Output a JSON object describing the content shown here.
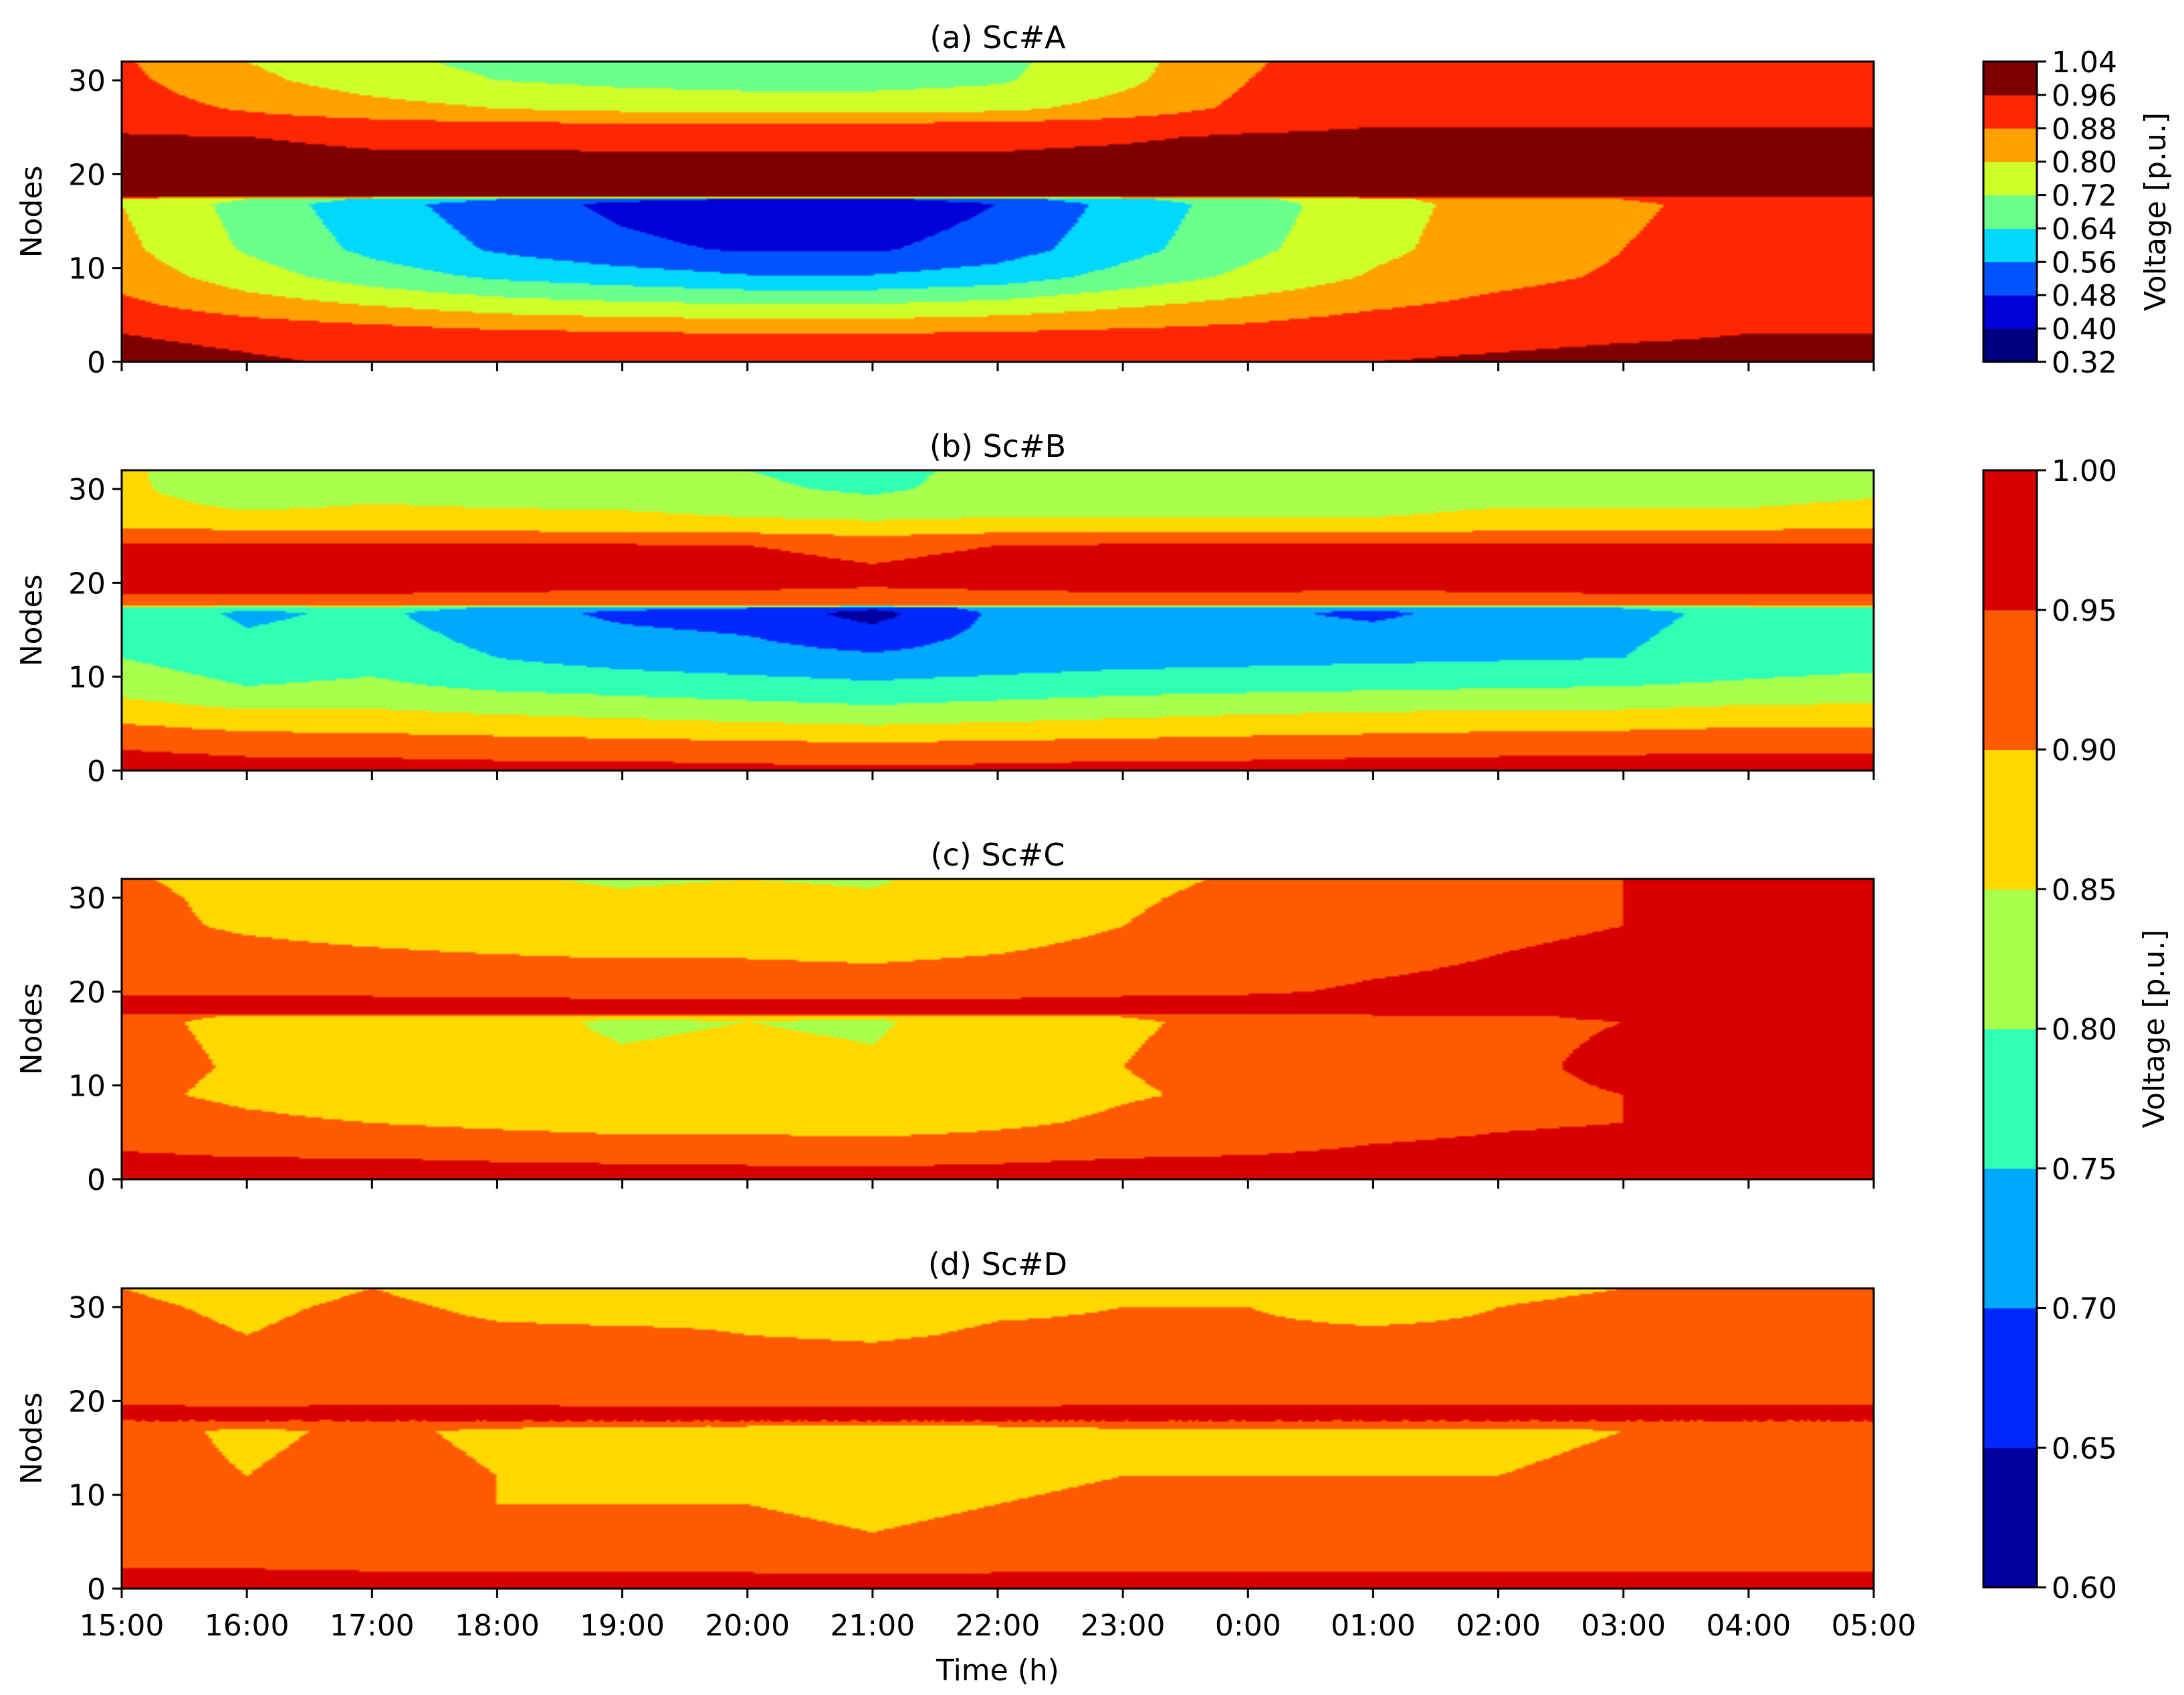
{
  "chart_data": {
    "type": "heatmap",
    "xlabel": "Time (h)",
    "ylabel": "Nodes",
    "x_tick_labels": [
      "15:00",
      "16:00",
      "17:00",
      "18:00",
      "19:00",
      "20:00",
      "21:00",
      "22:00",
      "23:00",
      "0:00",
      "01:00",
      "02:00",
      "03:00",
      "04:00",
      "05:00"
    ],
    "y_ticks": [
      0,
      10,
      20,
      30
    ],
    "ylim": [
      0,
      32
    ],
    "panels": [
      {
        "title": "(a) Sc#A",
        "colorbar": {
          "label": "Voltage [p.u.]",
          "levels": [
            "0.32",
            "0.40",
            "0.48",
            "0.56",
            "0.64",
            "0.72",
            "0.80",
            "0.88",
            "0.96",
            "1.04"
          ],
          "colors": [
            "#00007f",
            "#0000d8",
            "#0053ff",
            "#00d8ff",
            "#6bff8b",
            "#cfff29",
            "#ffa100",
            "#ff2600",
            "#7f0000"
          ]
        },
        "profiles": {
          "0": [
            0.99,
            0.97,
            0.95,
            0.93,
            0.925,
            0.92,
            0.92,
            0.93,
            0.94,
            0.95,
            0.96,
            0.97,
            0.98,
            0.98,
            0.98
          ],
          "3": [
            0.96,
            0.94,
            0.92,
            0.9,
            0.89,
            0.88,
            0.88,
            0.89,
            0.9,
            0.91,
            0.93,
            0.94,
            0.95,
            0.96,
            0.96
          ],
          "6": [
            0.9,
            0.84,
            0.8,
            0.76,
            0.74,
            0.73,
            0.73,
            0.75,
            0.79,
            0.83,
            0.87,
            0.9,
            0.92,
            0.93,
            0.93
          ],
          "9": [
            0.85,
            0.76,
            0.68,
            0.63,
            0.6,
            0.57,
            0.57,
            0.6,
            0.67,
            0.74,
            0.81,
            0.86,
            0.89,
            0.92,
            0.93
          ],
          "12": [
            0.82,
            0.71,
            0.62,
            0.55,
            0.5,
            0.47,
            0.47,
            0.52,
            0.61,
            0.7,
            0.78,
            0.84,
            0.88,
            0.91,
            0.92
          ],
          "16.8": [
            0.8,
            0.69,
            0.59,
            0.52,
            0.46,
            0.43,
            0.42,
            0.48,
            0.59,
            0.68,
            0.77,
            0.83,
            0.87,
            0.9,
            0.92
          ],
          "17.3": [
            0.8,
            0.72,
            0.62,
            0.56,
            0.5,
            0.47,
            0.46,
            0.52,
            0.62,
            0.7,
            0.78,
            0.84,
            0.88,
            0.91,
            0.92
          ],
          "17.7": [
            0.985,
            0.98,
            0.98,
            0.98,
            0.98,
            0.98,
            0.98,
            0.98,
            0.98,
            0.985,
            0.99,
            0.99,
            0.99,
            0.99,
            0.99
          ],
          "20": [
            0.99,
            0.985,
            0.98,
            0.98,
            0.975,
            0.975,
            0.975,
            0.975,
            0.98,
            0.985,
            0.99,
            0.99,
            0.99,
            0.99,
            0.99
          ],
          "24": [
            0.965,
            0.96,
            0.95,
            0.95,
            0.95,
            0.95,
            0.95,
            0.95,
            0.955,
            0.965,
            0.97,
            0.975,
            0.98,
            0.98,
            0.98
          ],
          "25": [
            0.95,
            0.93,
            0.92,
            0.91,
            0.91,
            0.91,
            0.91,
            0.92,
            0.93,
            0.95,
            0.96,
            0.96,
            0.96,
            0.96,
            0.96
          ],
          "27": [
            0.92,
            0.87,
            0.83,
            0.8,
            0.78,
            0.77,
            0.77,
            0.78,
            0.83,
            0.9,
            0.94,
            0.95,
            0.95,
            0.95,
            0.95
          ],
          "30": [
            0.9,
            0.82,
            0.76,
            0.72,
            0.7,
            0.69,
            0.69,
            0.71,
            0.78,
            0.88,
            0.93,
            0.94,
            0.94,
            0.94,
            0.94
          ],
          "32": [
            0.89,
            0.8,
            0.74,
            0.7,
            0.68,
            0.67,
            0.67,
            0.7,
            0.77,
            0.87,
            0.93,
            0.94,
            0.94,
            0.94,
            0.94
          ]
        }
      },
      {
        "title": "(b) Sc#B",
        "colorbar": {
          "label": "Voltage [p.u.]",
          "levels": [
            "0.60",
            "0.65",
            "0.70",
            "0.75",
            "0.80",
            "0.85",
            "0.90",
            "0.95",
            "1.00"
          ],
          "colors": [
            "#0000a0",
            "#0028ff",
            "#00a8ff",
            "#2effb5",
            "#a8ff4c",
            "#ffd800",
            "#ff5a00",
            "#d80000"
          ]
        },
        "profiles": {
          "0": [
            0.98,
            0.975,
            0.975,
            0.97,
            0.97,
            0.965,
            0.96,
            0.965,
            0.97,
            0.97,
            0.975,
            0.975,
            0.975,
            0.975,
            0.975
          ],
          "3": [
            0.94,
            0.925,
            0.92,
            0.915,
            0.91,
            0.905,
            0.9,
            0.905,
            0.91,
            0.915,
            0.92,
            0.925,
            0.93,
            0.935,
            0.935
          ],
          "6": [
            0.88,
            0.86,
            0.86,
            0.85,
            0.84,
            0.83,
            0.82,
            0.83,
            0.84,
            0.85,
            0.855,
            0.86,
            0.86,
            0.87,
            0.87
          ],
          "9": [
            0.83,
            0.8,
            0.81,
            0.79,
            0.78,
            0.77,
            0.76,
            0.77,
            0.78,
            0.785,
            0.79,
            0.795,
            0.8,
            0.81,
            0.82
          ],
          "12": [
            0.8,
            0.77,
            0.78,
            0.75,
            0.73,
            0.72,
            0.71,
            0.72,
            0.73,
            0.735,
            0.74,
            0.745,
            0.75,
            0.77,
            0.78
          ],
          "16.8": [
            0.79,
            0.74,
            0.76,
            0.72,
            0.69,
            0.68,
            0.63,
            0.71,
            0.72,
            0.71,
            0.69,
            0.72,
            0.74,
            0.76,
            0.77
          ],
          "17.3": [
            0.8,
            0.76,
            0.78,
            0.74,
            0.71,
            0.7,
            0.66,
            0.72,
            0.73,
            0.72,
            0.71,
            0.73,
            0.75,
            0.77,
            0.78
          ],
          "17.7": [
            0.93,
            0.93,
            0.93,
            0.93,
            0.93,
            0.93,
            0.93,
            0.93,
            0.93,
            0.93,
            0.93,
            0.93,
            0.93,
            0.93,
            0.93
          ],
          "20": [
            0.97,
            0.97,
            0.97,
            0.965,
            0.96,
            0.96,
            0.955,
            0.96,
            0.965,
            0.965,
            0.96,
            0.965,
            0.97,
            0.97,
            0.97
          ],
          "24": [
            0.96,
            0.96,
            0.955,
            0.955,
            0.955,
            0.95,
            0.945,
            0.95,
            0.955,
            0.955,
            0.955,
            0.955,
            0.96,
            0.96,
            0.96
          ],
          "25": [
            0.92,
            0.92,
            0.92,
            0.915,
            0.91,
            0.91,
            0.9,
            0.91,
            0.915,
            0.915,
            0.91,
            0.915,
            0.92,
            0.92,
            0.92
          ],
          "27": [
            0.87,
            0.86,
            0.86,
            0.86,
            0.86,
            0.85,
            0.84,
            0.85,
            0.85,
            0.85,
            0.85,
            0.86,
            0.86,
            0.86,
            0.87
          ],
          "30": [
            0.86,
            0.82,
            0.84,
            0.83,
            0.82,
            0.81,
            0.79,
            0.82,
            0.82,
            0.83,
            0.82,
            0.83,
            0.83,
            0.83,
            0.84
          ],
          "32": [
            0.86,
            0.81,
            0.84,
            0.82,
            0.81,
            0.8,
            0.78,
            0.82,
            0.82,
            0.82,
            0.82,
            0.82,
            0.83,
            0.83,
            0.84
          ]
        }
      },
      {
        "title": "(c) Sc#C",
        "colorbar_ref": 1,
        "profiles": {
          "0": [
            0.99,
            0.985,
            0.98,
            0.975,
            0.975,
            0.97,
            0.97,
            0.975,
            0.98,
            0.98,
            0.985,
            0.99,
            0.99,
            0.99,
            0.99
          ],
          "3": [
            0.95,
            0.94,
            0.94,
            0.935,
            0.93,
            0.93,
            0.925,
            0.93,
            0.94,
            0.945,
            0.955,
            0.96,
            0.965,
            0.965,
            0.97
          ],
          "6": [
            0.93,
            0.91,
            0.9,
            0.89,
            0.88,
            0.88,
            0.875,
            0.89,
            0.91,
            0.92,
            0.935,
            0.945,
            0.95,
            0.955,
            0.96
          ],
          "9": [
            0.91,
            0.89,
            0.875,
            0.865,
            0.855,
            0.855,
            0.85,
            0.87,
            0.895,
            0.91,
            0.93,
            0.945,
            0.95,
            0.955,
            0.96
          ],
          "12": [
            0.915,
            0.895,
            0.88,
            0.865,
            0.855,
            0.86,
            0.855,
            0.875,
            0.9,
            0.915,
            0.935,
            0.945,
            0.955,
            0.96,
            0.96
          ],
          "16.8": [
            0.91,
            0.89,
            0.87,
            0.86,
            0.845,
            0.85,
            0.845,
            0.87,
            0.895,
            0.91,
            0.93,
            0.945,
            0.95,
            0.955,
            0.96
          ],
          "17.3": [
            0.915,
            0.895,
            0.875,
            0.865,
            0.855,
            0.86,
            0.855,
            0.875,
            0.9,
            0.915,
            0.935,
            0.945,
            0.955,
            0.96,
            0.96
          ],
          "17.7": [
            0.96,
            0.96,
            0.955,
            0.955,
            0.955,
            0.955,
            0.955,
            0.955,
            0.96,
            0.96,
            0.965,
            0.97,
            0.97,
            0.97,
            0.975
          ],
          "18.5": [
            0.97,
            0.97,
            0.97,
            0.97,
            0.965,
            0.965,
            0.965,
            0.965,
            0.97,
            0.97,
            0.975,
            0.975,
            0.975,
            0.975,
            0.975
          ],
          "20": [
            0.945,
            0.94,
            0.94,
            0.935,
            0.935,
            0.935,
            0.93,
            0.935,
            0.94,
            0.945,
            0.955,
            0.96,
            0.965,
            0.965,
            0.97
          ],
          "24": [
            0.92,
            0.91,
            0.905,
            0.9,
            0.895,
            0.895,
            0.89,
            0.9,
            0.91,
            0.925,
            0.94,
            0.95,
            0.955,
            0.96,
            0.96
          ],
          "27": [
            0.91,
            0.895,
            0.885,
            0.875,
            0.87,
            0.875,
            0.87,
            0.885,
            0.9,
            0.915,
            0.935,
            0.945,
            0.95,
            0.955,
            0.96
          ],
          "30": [
            0.91,
            0.89,
            0.875,
            0.86,
            0.855,
            0.86,
            0.855,
            0.875,
            0.895,
            0.91,
            0.93,
            0.945,
            0.95,
            0.955,
            0.96
          ],
          "32": [
            0.905,
            0.885,
            0.87,
            0.855,
            0.845,
            0.85,
            0.845,
            0.87,
            0.89,
            0.905,
            0.93,
            0.945,
            0.95,
            0.955,
            0.96
          ]
        }
      },
      {
        "title": "(d) Sc#D",
        "colorbar_ref": 1,
        "profiles": {
          "0": [
            0.975,
            0.975,
            0.975,
            0.975,
            0.97,
            0.97,
            0.97,
            0.97,
            0.97,
            0.97,
            0.97,
            0.975,
            0.975,
            0.975,
            0.975
          ],
          "3": [
            0.94,
            0.94,
            0.935,
            0.935,
            0.935,
            0.935,
            0.93,
            0.935,
            0.935,
            0.935,
            0.935,
            0.935,
            0.935,
            0.935,
            0.935
          ],
          "6": [
            0.91,
            0.91,
            0.91,
            0.905,
            0.905,
            0.905,
            0.9,
            0.905,
            0.905,
            0.905,
            0.905,
            0.905,
            0.905,
            0.905,
            0.905
          ],
          "9": [
            0.91,
            0.9,
            0.91,
            0.9,
            0.9,
            0.9,
            0.895,
            0.9,
            0.905,
            0.91,
            0.905,
            0.905,
            0.91,
            0.91,
            0.91
          ],
          "12": [
            0.91,
            0.9,
            0.91,
            0.9,
            0.895,
            0.895,
            0.89,
            0.895,
            0.9,
            0.9,
            0.9,
            0.9,
            0.905,
            0.905,
            0.905
          ],
          "16.8": [
            0.91,
            0.895,
            0.905,
            0.895,
            0.89,
            0.89,
            0.88,
            0.89,
            0.895,
            0.895,
            0.895,
            0.895,
            0.9,
            0.9,
            0.9
          ],
          "17.3": [
            0.915,
            0.905,
            0.915,
            0.905,
            0.9,
            0.9,
            0.895,
            0.9,
            0.905,
            0.905,
            0.905,
            0.905,
            0.905,
            0.905,
            0.905
          ],
          "17.7": [
            0.945,
            0.945,
            0.945,
            0.945,
            0.945,
            0.945,
            0.945,
            0.945,
            0.945,
            0.945,
            0.945,
            0.945,
            0.945,
            0.945,
            0.945
          ],
          "18.5": [
            0.965,
            0.965,
            0.965,
            0.965,
            0.965,
            0.965,
            0.965,
            0.965,
            0.965,
            0.965,
            0.965,
            0.965,
            0.965,
            0.965,
            0.965
          ],
          "20": [
            0.945,
            0.94,
            0.945,
            0.945,
            0.94,
            0.94,
            0.94,
            0.94,
            0.945,
            0.945,
            0.945,
            0.945,
            0.945,
            0.945,
            0.945
          ],
          "24": [
            0.925,
            0.92,
            0.925,
            0.92,
            0.92,
            0.92,
            0.915,
            0.92,
            0.92,
            0.92,
            0.92,
            0.925,
            0.925,
            0.925,
            0.925
          ],
          "27": [
            0.91,
            0.9,
            0.91,
            0.905,
            0.905,
            0.9,
            0.895,
            0.905,
            0.905,
            0.905,
            0.905,
            0.905,
            0.91,
            0.91,
            0.91
          ],
          "30": [
            0.905,
            0.895,
            0.905,
            0.895,
            0.89,
            0.895,
            0.885,
            0.895,
            0.9,
            0.9,
            0.89,
            0.9,
            0.905,
            0.905,
            0.905
          ],
          "32": [
            0.9,
            0.89,
            0.9,
            0.89,
            0.885,
            0.89,
            0.88,
            0.89,
            0.895,
            0.895,
            0.885,
            0.895,
            0.9,
            0.9,
            0.9
          ]
        }
      }
    ]
  }
}
